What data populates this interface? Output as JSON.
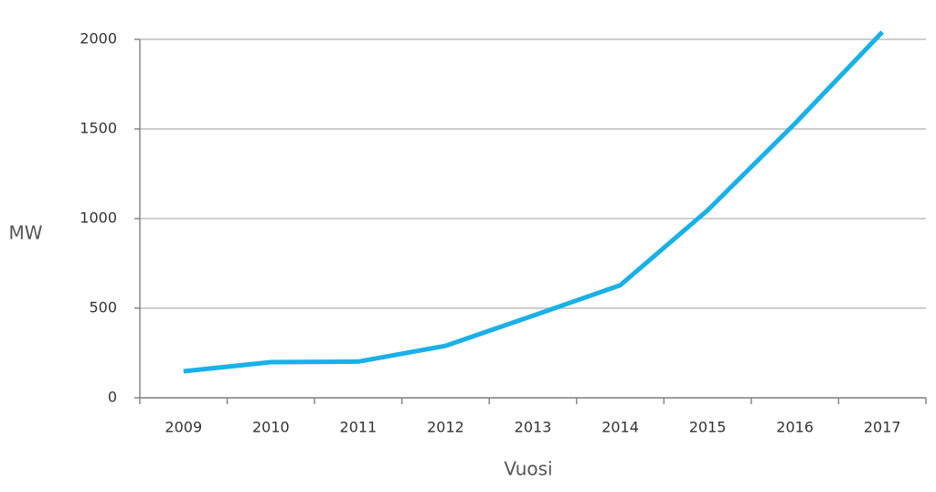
{
  "chart_data": {
    "type": "line",
    "x_label": "Vuosi",
    "y_label": "MW",
    "categories": [
      "2009",
      "2010",
      "2011",
      "2012",
      "2013",
      "2014",
      "2015",
      "2016",
      "2017"
    ],
    "values": [
      148,
      199,
      202,
      290,
      458,
      628,
      1046,
      1530,
      2040
    ],
    "color": "#1ab0e8",
    "ylim": [
      0,
      2000
    ],
    "yticks": [
      0,
      500,
      1000,
      1500,
      2000
    ],
    "grid": true
  }
}
